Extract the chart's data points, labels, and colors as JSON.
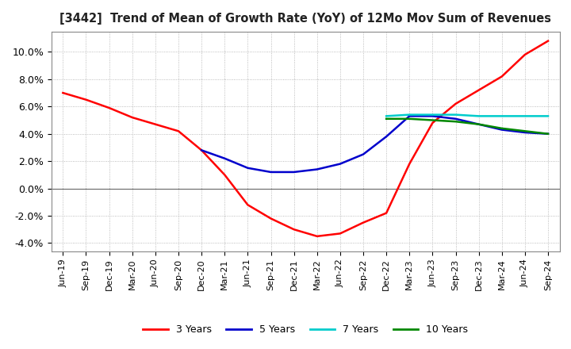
{
  "title": "[3442]  Trend of Mean of Growth Rate (YoY) of 12Mo Mov Sum of Revenues",
  "title_fontsize": 10.5,
  "ylim": [
    -0.046,
    0.115
  ],
  "yticks": [
    -0.04,
    -0.02,
    0.0,
    0.02,
    0.04,
    0.06,
    0.08,
    0.1
  ],
  "ytick_labels": [
    "-4.0%",
    "-2.0%",
    "0.0%",
    "2.0%",
    "4.0%",
    "6.0%",
    "8.0%",
    "10.0%"
  ],
  "background_color": "#ffffff",
  "grid_color": "#aaaaaa",
  "series": {
    "3 Years": {
      "color": "#ff0000",
      "x": [
        "Jun-19",
        "Sep-19",
        "Dec-19",
        "Mar-20",
        "Jun-20",
        "Sep-20",
        "Dec-20",
        "Mar-21",
        "Jun-21",
        "Sep-21",
        "Dec-21",
        "Mar-22",
        "Jun-22",
        "Sep-22",
        "Dec-22",
        "Mar-23",
        "Jun-23",
        "Sep-23",
        "Dec-23",
        "Mar-24",
        "Jun-24",
        "Sep-24"
      ],
      "y": [
        0.07,
        0.065,
        0.059,
        0.052,
        0.047,
        0.042,
        0.028,
        0.01,
        -0.012,
        -0.022,
        -0.03,
        -0.035,
        -0.033,
        -0.025,
        -0.018,
        0.018,
        0.048,
        0.062,
        0.072,
        0.082,
        0.098,
        0.108
      ]
    },
    "5 Years": {
      "color": "#0000cc",
      "x": [
        "Dec-20",
        "Mar-21",
        "Jun-21",
        "Sep-21",
        "Dec-21",
        "Mar-22",
        "Jun-22",
        "Sep-22",
        "Dec-22",
        "Mar-23",
        "Jun-23",
        "Sep-23",
        "Dec-23",
        "Mar-24",
        "Jun-24",
        "Sep-24"
      ],
      "y": [
        0.028,
        0.022,
        0.015,
        0.012,
        0.012,
        0.014,
        0.018,
        0.025,
        0.038,
        0.053,
        0.053,
        0.051,
        0.047,
        0.043,
        0.041,
        0.04
      ]
    },
    "7 Years": {
      "color": "#00cccc",
      "x": [
        "Dec-22",
        "Mar-23",
        "Jun-23",
        "Sep-23",
        "Dec-23",
        "Mar-24",
        "Jun-24",
        "Sep-24"
      ],
      "y": [
        0.053,
        0.054,
        0.054,
        0.054,
        0.053,
        0.053,
        0.053,
        0.053
      ]
    },
    "10 Years": {
      "color": "#008800",
      "x": [
        "Dec-22",
        "Mar-23",
        "Jun-23",
        "Sep-23",
        "Dec-23",
        "Mar-24",
        "Jun-24",
        "Sep-24"
      ],
      "y": [
        0.051,
        0.051,
        0.05,
        0.049,
        0.047,
        0.044,
        0.042,
        0.04
      ]
    }
  },
  "legend_labels": [
    "3 Years",
    "5 Years",
    "7 Years",
    "10 Years"
  ],
  "legend_colors": [
    "#ff0000",
    "#0000cc",
    "#00cccc",
    "#008800"
  ],
  "x_all_ticks": [
    "Jun-19",
    "Sep-19",
    "Dec-19",
    "Mar-20",
    "Jun-20",
    "Sep-20",
    "Dec-20",
    "Mar-21",
    "Jun-21",
    "Sep-21",
    "Dec-21",
    "Mar-22",
    "Jun-22",
    "Sep-22",
    "Dec-22",
    "Mar-23",
    "Jun-23",
    "Sep-23",
    "Dec-23",
    "Mar-24",
    "Jun-24",
    "Sep-24"
  ]
}
